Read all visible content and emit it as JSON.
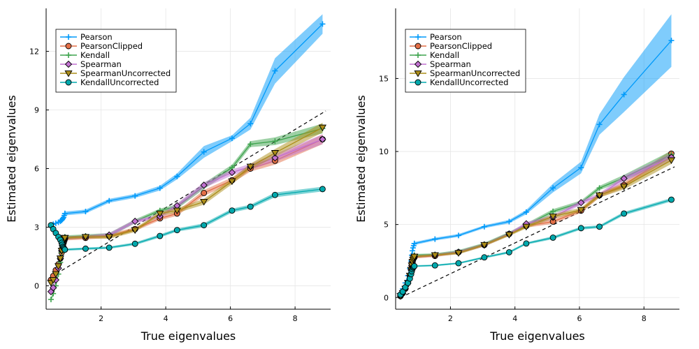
{
  "chart_data": [
    {
      "type": "line",
      "xlabel": "True eigenvalues",
      "ylabel": "Estimated eigenvalues",
      "xlim": [
        0.3,
        9.1
      ],
      "ylim": [
        -1.2,
        14.2
      ],
      "xticks": [
        2,
        4,
        6,
        8
      ],
      "yticks": [
        0,
        3,
        6,
        9,
        12
      ],
      "grid": true,
      "legend": "top-left",
      "reference_line": {
        "style": "dashed",
        "color": "#000000",
        "x": [
          0.45,
          8.95
        ],
        "y": [
          0.45,
          8.95
        ]
      },
      "x": [
        0.88,
        1.52,
        2.25,
        3.05,
        3.82,
        4.35,
        5.18,
        6.05,
        6.62,
        7.38,
        8.85
      ],
      "cluster_x": [
        0.45,
        0.52,
        0.6,
        0.68,
        0.74,
        0.78,
        0.8,
        0.82,
        0.84,
        0.86,
        0.88
      ],
      "series": [
        {
          "name": "Pearson",
          "color": "#009AFA",
          "marker": "cross",
          "cluster_y": [
            3.1,
            3.15,
            3.2,
            3.25,
            3.3,
            3.35,
            3.4,
            3.45,
            3.5,
            3.6,
            3.7
          ],
          "values": [
            3.7,
            3.8,
            4.35,
            4.6,
            5.0,
            5.6,
            6.85,
            7.55,
            8.3,
            11.0,
            13.4
          ],
          "band": [
            0.1,
            0.1,
            0.1,
            0.1,
            0.12,
            0.15,
            0.3,
            0.15,
            0.3,
            0.65,
            0.5
          ]
        },
        {
          "name": "PearsonClipped",
          "color": "#E36F47",
          "marker": "circle",
          "cluster_y": [
            0.3,
            0.5,
            0.8,
            1.1,
            1.4,
            1.7,
            1.9,
            2.1,
            2.2,
            2.3,
            2.4
          ],
          "values": [
            2.4,
            2.45,
            2.55,
            2.9,
            3.45,
            3.7,
            4.75,
            5.4,
            6.0,
            6.4,
            7.5
          ],
          "band": [
            0.08,
            0.08,
            0.1,
            0.1,
            0.1,
            0.12,
            0.15,
            0.15,
            0.15,
            0.2,
            0.25
          ]
        },
        {
          "name": "Kendall",
          "color": "#3EA44E",
          "marker": "cross",
          "cluster_y": [
            -0.7,
            -0.4,
            0.0,
            0.6,
            1.2,
            1.7,
            2.0,
            2.2,
            2.35,
            2.45,
            2.5
          ],
          "values": [
            2.5,
            2.55,
            2.6,
            3.3,
            3.85,
            4.05,
            5.1,
            6.05,
            7.25,
            7.4,
            8.05
          ],
          "band": [
            0.08,
            0.08,
            0.1,
            0.1,
            0.1,
            0.12,
            0.15,
            0.15,
            0.15,
            0.2,
            0.25
          ]
        },
        {
          "name": "Spearman",
          "color": "#C271D2",
          "marker": "diamond",
          "cluster_y": [
            -0.3,
            -0.1,
            0.3,
            0.9,
            1.4,
            1.8,
            2.05,
            2.2,
            2.3,
            2.4,
            2.45
          ],
          "values": [
            2.45,
            2.5,
            2.6,
            3.3,
            3.55,
            4.1,
            5.15,
            5.8,
            6.1,
            6.55,
            7.5
          ],
          "band": [
            0.08,
            0.08,
            0.1,
            0.1,
            0.1,
            0.12,
            0.15,
            0.15,
            0.15,
            0.2,
            0.25
          ]
        },
        {
          "name": "SpearmanUncorrected",
          "color": "#AC8D18",
          "marker": "triangle-down",
          "cluster_y": [
            0.15,
            0.3,
            0.6,
            1.0,
            1.4,
            1.8,
            2.05,
            2.2,
            2.3,
            2.4,
            2.45
          ],
          "values": [
            2.45,
            2.5,
            2.5,
            2.85,
            3.7,
            3.85,
            4.3,
            5.35,
            6.1,
            6.8,
            8.1
          ],
          "band": [
            0.08,
            0.08,
            0.1,
            0.1,
            0.1,
            0.12,
            0.15,
            0.15,
            0.15,
            0.2,
            0.25
          ]
        },
        {
          "name": "KendallUncorrected",
          "color": "#00A9AD",
          "marker": "circle",
          "cluster_y": [
            3.1,
            2.9,
            2.7,
            2.5,
            2.35,
            2.2,
            2.1,
            2.0,
            1.95,
            1.9,
            1.85
          ],
          "values": [
            1.85,
            1.9,
            1.95,
            2.15,
            2.55,
            2.85,
            3.1,
            3.85,
            4.05,
            4.65,
            4.95
          ],
          "band": [
            0.06,
            0.06,
            0.06,
            0.07,
            0.08,
            0.08,
            0.1,
            0.1,
            0.1,
            0.12,
            0.12
          ]
        }
      ]
    },
    {
      "type": "line",
      "xlabel": "True eigenvalues",
      "ylabel": "Estimated eigenvalues",
      "xlim": [
        0.3,
        9.1
      ],
      "ylim": [
        -0.8,
        19.8
      ],
      "xticks": [
        2,
        4,
        6,
        8
      ],
      "yticks": [
        0,
        5,
        10,
        15
      ],
      "grid": true,
      "legend": "top-left",
      "reference_line": {
        "style": "dashed",
        "color": "#000000",
        "x": [
          0.45,
          8.95
        ],
        "y": [
          0.0,
          8.95
        ]
      },
      "x": [
        0.88,
        1.52,
        2.25,
        3.05,
        3.82,
        4.35,
        5.18,
        6.05,
        6.62,
        7.38,
        8.85
      ],
      "cluster_x": [
        0.45,
        0.52,
        0.6,
        0.68,
        0.74,
        0.78,
        0.8,
        0.82,
        0.84,
        0.86,
        0.88
      ],
      "series": [
        {
          "name": "Pearson",
          "color": "#009AFA",
          "marker": "cross",
          "cluster_y": [
            0.3,
            0.6,
            1.0,
            1.5,
            2.0,
            2.5,
            2.9,
            3.2,
            3.4,
            3.55,
            3.7
          ],
          "values": [
            3.7,
            4.0,
            4.25,
            4.85,
            5.2,
            5.85,
            7.5,
            8.9,
            11.85,
            13.9,
            17.6
          ],
          "band": [
            0.1,
            0.1,
            0.1,
            0.1,
            0.12,
            0.15,
            0.3,
            0.4,
            0.7,
            1.2,
            1.8
          ]
        },
        {
          "name": "PearsonClipped",
          "color": "#E36F47",
          "marker": "circle",
          "cluster_y": [
            0.1,
            0.3,
            0.6,
            1.0,
            1.5,
            1.9,
            2.2,
            2.4,
            2.6,
            2.7,
            2.75
          ],
          "values": [
            2.75,
            2.85,
            3.1,
            3.6,
            4.35,
            4.9,
            5.2,
            5.95,
            7.0,
            7.7,
            9.85
          ],
          "band": [
            0.08,
            0.08,
            0.1,
            0.1,
            0.1,
            0.12,
            0.15,
            0.15,
            0.15,
            0.2,
            0.25
          ]
        },
        {
          "name": "Kendall",
          "color": "#3EA44E",
          "marker": "cross",
          "cluster_y": [
            0.1,
            0.3,
            0.6,
            1.0,
            1.5,
            1.9,
            2.3,
            2.5,
            2.7,
            2.8,
            2.9
          ],
          "values": [
            2.9,
            2.95,
            3.15,
            3.65,
            4.4,
            4.95,
            5.9,
            6.5,
            7.5,
            8.2,
            9.8
          ],
          "band": [
            0.08,
            0.08,
            0.1,
            0.1,
            0.1,
            0.12,
            0.15,
            0.15,
            0.15,
            0.2,
            0.25
          ]
        },
        {
          "name": "Spearman",
          "color": "#C271D2",
          "marker": "diamond",
          "cluster_y": [
            0.1,
            0.3,
            0.6,
            1.0,
            1.5,
            1.9,
            2.2,
            2.45,
            2.6,
            2.7,
            2.8
          ],
          "values": [
            2.8,
            2.9,
            3.1,
            3.6,
            4.35,
            5.05,
            5.5,
            6.5,
            7.0,
            8.15,
            9.6
          ],
          "band": [
            0.08,
            0.08,
            0.1,
            0.1,
            0.1,
            0.12,
            0.15,
            0.15,
            0.15,
            0.2,
            0.25
          ]
        },
        {
          "name": "SpearmanUncorrected",
          "color": "#AC8D18",
          "marker": "triangle-down",
          "cluster_y": [
            0.1,
            0.3,
            0.6,
            1.0,
            1.5,
            1.9,
            2.2,
            2.45,
            2.6,
            2.7,
            2.8
          ],
          "values": [
            2.8,
            2.9,
            3.05,
            3.6,
            4.3,
            4.85,
            5.55,
            6.0,
            7.0,
            7.6,
            9.4
          ],
          "band": [
            0.08,
            0.08,
            0.1,
            0.1,
            0.1,
            0.12,
            0.15,
            0.15,
            0.15,
            0.2,
            0.25
          ]
        },
        {
          "name": "KendallUncorrected",
          "color": "#00A9AD",
          "marker": "circle",
          "cluster_y": [
            0.2,
            0.4,
            0.7,
            1.0,
            1.3,
            1.6,
            1.8,
            1.95,
            2.05,
            2.1,
            2.15
          ],
          "values": [
            2.15,
            2.2,
            2.35,
            2.75,
            3.1,
            3.7,
            4.1,
            4.75,
            4.85,
            5.75,
            6.7
          ],
          "band": [
            0.06,
            0.06,
            0.06,
            0.07,
            0.08,
            0.08,
            0.1,
            0.1,
            0.1,
            0.12,
            0.12
          ]
        }
      ]
    }
  ]
}
